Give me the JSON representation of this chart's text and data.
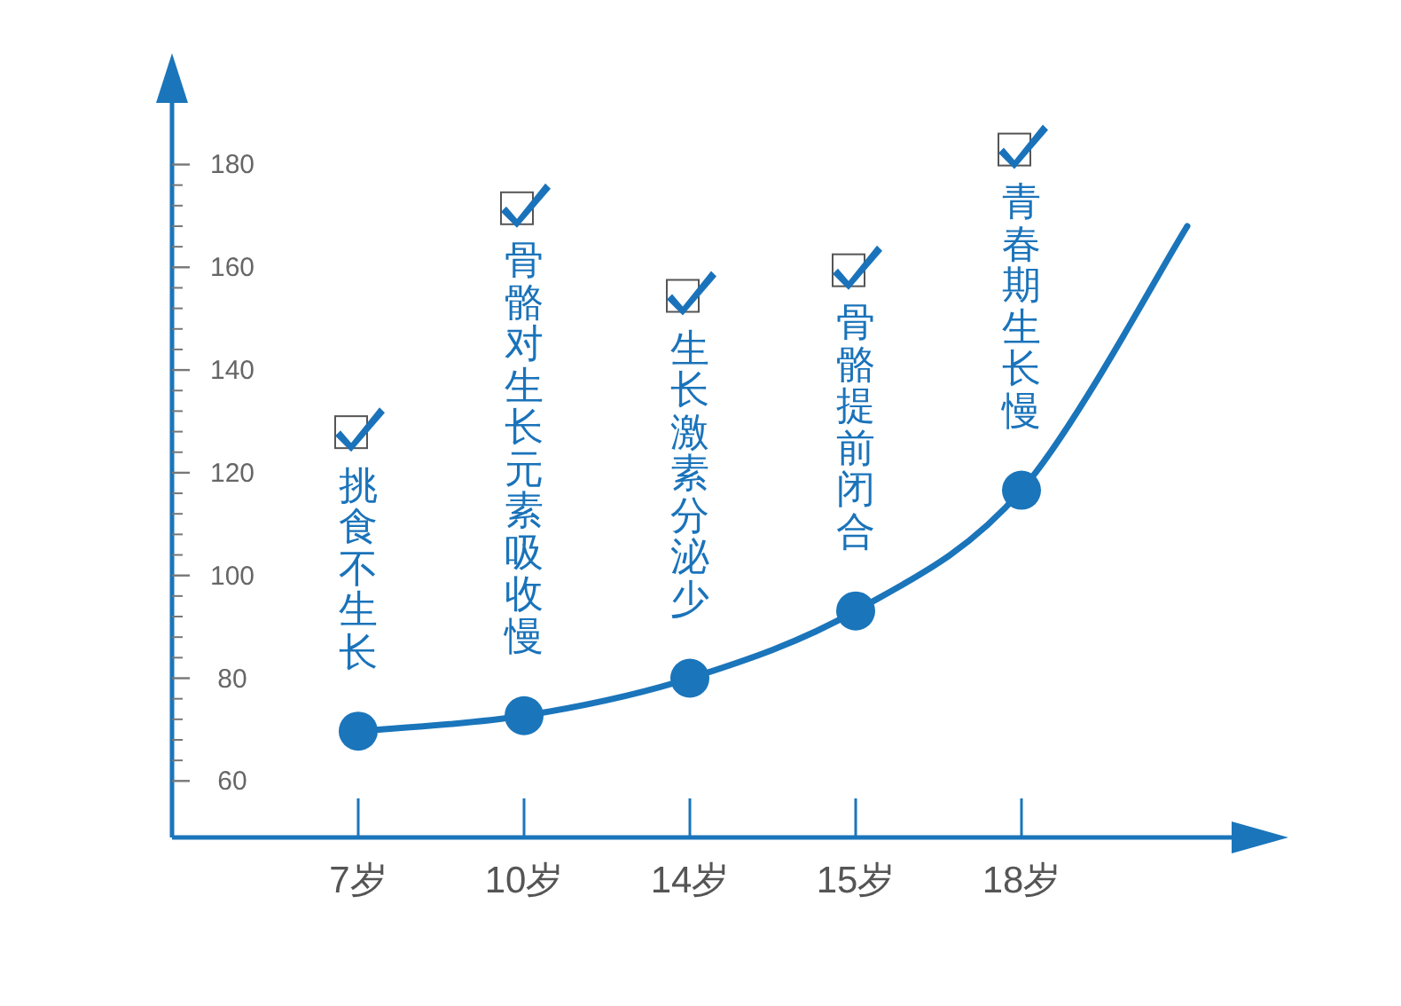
{
  "chart_data": {
    "type": "line",
    "categories": [
      "7岁",
      "10岁",
      "14岁",
      "15岁",
      "18岁",
      null
    ],
    "series": [
      {
        "color": "#1a75bb",
        "marker": "none",
        "values": [
          69.7,
          72.7,
          80,
          93.1,
          116.6,
          168
        ]
      },
      {
        "type": "scatter",
        "color": "#1a75bb",
        "marker": "circle",
        "values": [
          69.7,
          72.7,
          80,
          93.1,
          116.6,
          null
        ]
      }
    ],
    "ylim": [
      49,
      192
    ],
    "yticks": [
      60,
      80,
      100,
      120,
      140,
      160,
      180
    ],
    "grid": false,
    "annotations": [
      "挑食不生长",
      "骨骼对生长元素吸收慢",
      "生长激素分泌少",
      "骨骼提前闭合",
      "青春期生长慢"
    ]
  }
}
